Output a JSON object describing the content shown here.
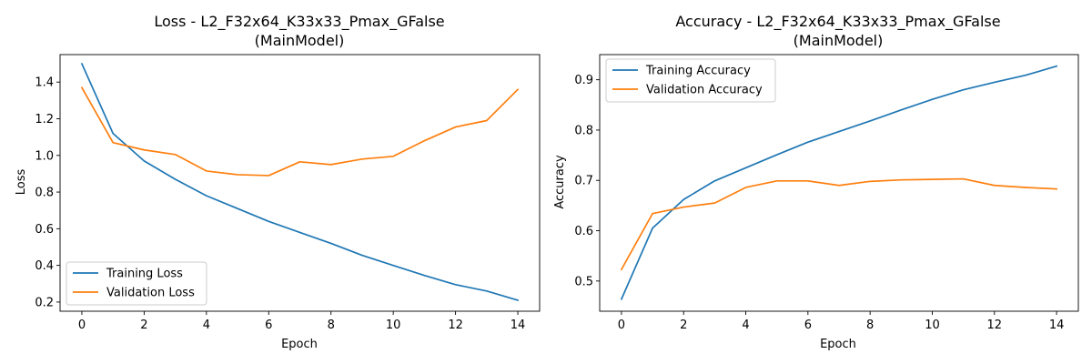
{
  "chart_data": [
    {
      "type": "line",
      "title": "Loss - L2_F32x64_K33x33_Pmax_GFalse",
      "subtitle": "(MainModel)",
      "xlabel": "Epoch",
      "ylabel": "Loss",
      "xlim": [
        -0.7,
        14.7
      ],
      "ylim": [
        0.15,
        1.55
      ],
      "xticks": [
        0,
        2,
        4,
        6,
        8,
        10,
        12,
        14
      ],
      "yticks": [
        0.2,
        0.4,
        0.6,
        0.8,
        1.0,
        1.2,
        1.4
      ],
      "ytick_labels": [
        "0.2",
        "0.4",
        "0.6",
        "0.8",
        "1.0",
        "1.2",
        "1.4"
      ],
      "grid": false,
      "legend_position": "lower-left",
      "x": [
        0,
        1,
        2,
        3,
        4,
        5,
        6,
        7,
        8,
        9,
        10,
        11,
        12,
        13,
        14
      ],
      "series": [
        {
          "name": "Training Loss",
          "color": "#1f77b4",
          "values": [
            1.5,
            1.12,
            0.97,
            0.87,
            0.78,
            0.71,
            0.64,
            0.58,
            0.52,
            0.455,
            0.4,
            0.345,
            0.295,
            0.26,
            0.21
          ]
        },
        {
          "name": "Validation Loss",
          "color": "#ff7f0e",
          "values": [
            1.37,
            1.07,
            1.03,
            1.005,
            0.915,
            0.895,
            0.89,
            0.965,
            0.95,
            0.98,
            0.995,
            1.08,
            1.155,
            1.19,
            1.36
          ]
        }
      ]
    },
    {
      "type": "line",
      "title": "Accuracy - L2_F32x64_K33x33_Pmax_GFalse",
      "subtitle": "(MainModel)",
      "xlabel": "Epoch",
      "ylabel": "Accuracy",
      "xlim": [
        -0.7,
        14.7
      ],
      "ylim": [
        0.44,
        0.95
      ],
      "xticks": [
        0,
        2,
        4,
        6,
        8,
        10,
        12,
        14
      ],
      "yticks": [
        0.5,
        0.6,
        0.7,
        0.8,
        0.9
      ],
      "ytick_labels": [
        "0.5",
        "0.6",
        "0.7",
        "0.8",
        "0.9"
      ],
      "grid": false,
      "legend_position": "upper-left",
      "x": [
        0,
        1,
        2,
        3,
        4,
        5,
        6,
        7,
        8,
        9,
        10,
        11,
        12,
        13,
        14
      ],
      "series": [
        {
          "name": "Training Accuracy",
          "color": "#1f77b4",
          "values": [
            0.464,
            0.605,
            0.662,
            0.699,
            0.725,
            0.751,
            0.776,
            0.797,
            0.818,
            0.84,
            0.861,
            0.88,
            0.895,
            0.909,
            0.927
          ]
        },
        {
          "name": "Validation Accuracy",
          "color": "#ff7f0e",
          "values": [
            0.523,
            0.634,
            0.647,
            0.655,
            0.686,
            0.699,
            0.699,
            0.69,
            0.698,
            0.701,
            0.702,
            0.703,
            0.69,
            0.686,
            0.683
          ]
        }
      ]
    }
  ]
}
